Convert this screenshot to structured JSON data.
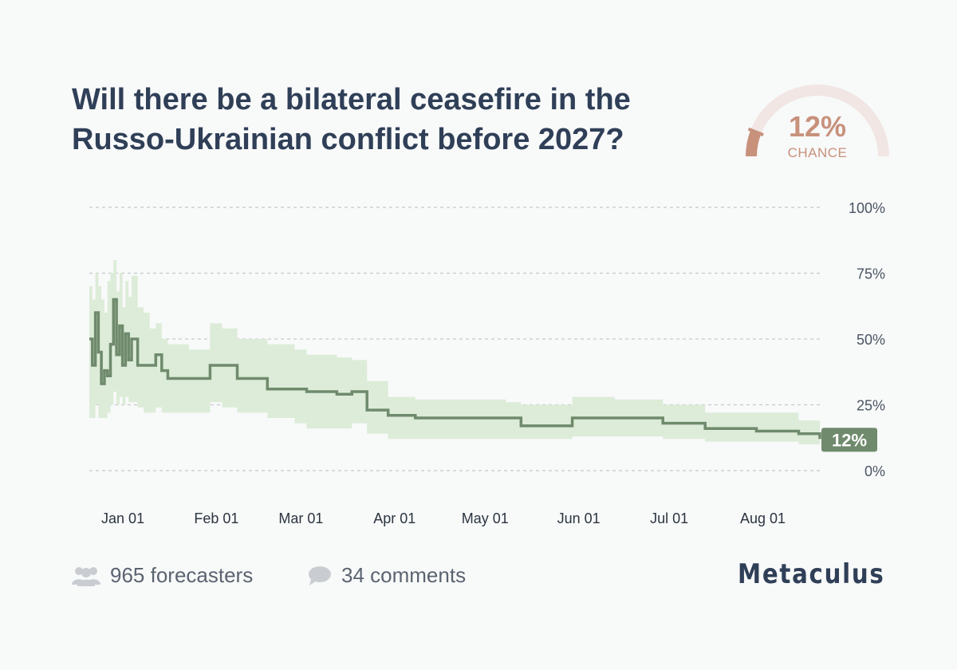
{
  "question": {
    "title_lines": [
      "Will there be a bilateral ceasefire in the",
      "Russo-Ukrainian conflict before 2027?"
    ]
  },
  "gauge": {
    "value": 12,
    "value_label": "12%",
    "label": "CHANCE"
  },
  "chart_data": {
    "type": "area",
    "x_tick_labels": [
      "Jan 01",
      "Feb 01",
      "Mar 01",
      "Apr 01",
      "May 01",
      "Jun 01",
      "Jul 01",
      "Aug 01"
    ],
    "x_ticks": [
      "2025-01-01",
      "2025-02-01",
      "2025-03-01",
      "2025-04-01",
      "2025-05-01",
      "2025-06-01",
      "2025-07-01",
      "2025-08-01"
    ],
    "xlim": [
      "2024-12-23",
      "2025-08-22"
    ],
    "y_tick_labels": [
      "100%",
      "75%",
      "50%",
      "25%",
      "0%"
    ],
    "y_ticks": [
      100,
      75,
      50,
      25,
      0
    ],
    "ylim": [
      0,
      100
    ],
    "grid": "horizontal-dashed",
    "current_label": "12%",
    "series": [
      {
        "x": [
          "2024-12-23",
          "2024-12-24",
          "2024-12-25",
          "2024-12-26",
          "2024-12-27",
          "2024-12-28",
          "2024-12-29",
          "2024-12-30",
          "2024-12-31",
          "2025-01-01",
          "2025-01-02",
          "2025-01-03",
          "2025-01-04",
          "2025-01-05",
          "2025-01-06",
          "2025-01-08",
          "2025-01-10",
          "2025-01-12",
          "2025-01-14",
          "2025-01-16",
          "2025-01-18",
          "2025-01-20",
          "2025-01-25",
          "2025-02-01",
          "2025-02-05",
          "2025-02-10",
          "2025-02-20",
          "2025-03-01",
          "2025-03-05",
          "2025-03-10",
          "2025-03-15",
          "2025-03-20",
          "2025-03-25",
          "2025-04-01",
          "2025-04-10",
          "2025-04-20",
          "2025-05-01",
          "2025-05-10",
          "2025-05-15",
          "2025-06-01",
          "2025-06-15",
          "2025-07-01",
          "2025-07-15",
          "2025-08-01",
          "2025-08-15",
          "2025-08-22"
        ],
        "median": [
          50,
          40,
          60,
          45,
          33,
          38,
          36,
          48,
          65,
          44,
          55,
          40,
          52,
          42,
          50,
          40,
          40,
          40,
          44,
          38,
          35,
          35,
          35,
          40,
          40,
          35,
          31,
          31,
          30,
          30,
          29,
          30,
          23,
          21,
          20,
          20,
          20,
          20,
          17,
          20,
          20,
          18,
          16,
          15,
          14,
          12
        ],
        "lower": [
          20,
          20,
          25,
          20,
          20,
          20,
          22,
          25,
          30,
          25,
          28,
          25,
          28,
          26,
          26,
          24,
          22,
          22,
          24,
          22,
          22,
          22,
          22,
          26,
          24,
          22,
          20,
          18,
          16,
          16,
          16,
          18,
          14,
          12,
          12,
          12,
          12,
          12,
          12,
          13,
          13,
          12,
          11,
          11,
          10,
          10
        ],
        "upper": [
          70,
          65,
          75,
          70,
          65,
          60,
          72,
          75,
          80,
          68,
          75,
          62,
          72,
          66,
          74,
          62,
          60,
          54,
          56,
          50,
          48,
          48,
          46,
          56,
          54,
          50,
          48,
          46,
          44,
          44,
          43,
          42,
          34,
          28,
          27,
          27,
          27,
          26,
          25,
          28,
          27,
          25,
          22,
          22,
          19,
          18
        ]
      }
    ]
  },
  "footer": {
    "forecasters": "965 forecasters",
    "comments": "34 comments",
    "brand": "Metaculus"
  },
  "colors": {
    "line": "#6f8a6c",
    "band": "#dcecd8",
    "gauge": "#c7917c",
    "gauge_track": "#f1e6e3",
    "text": "#2f3f57"
  }
}
